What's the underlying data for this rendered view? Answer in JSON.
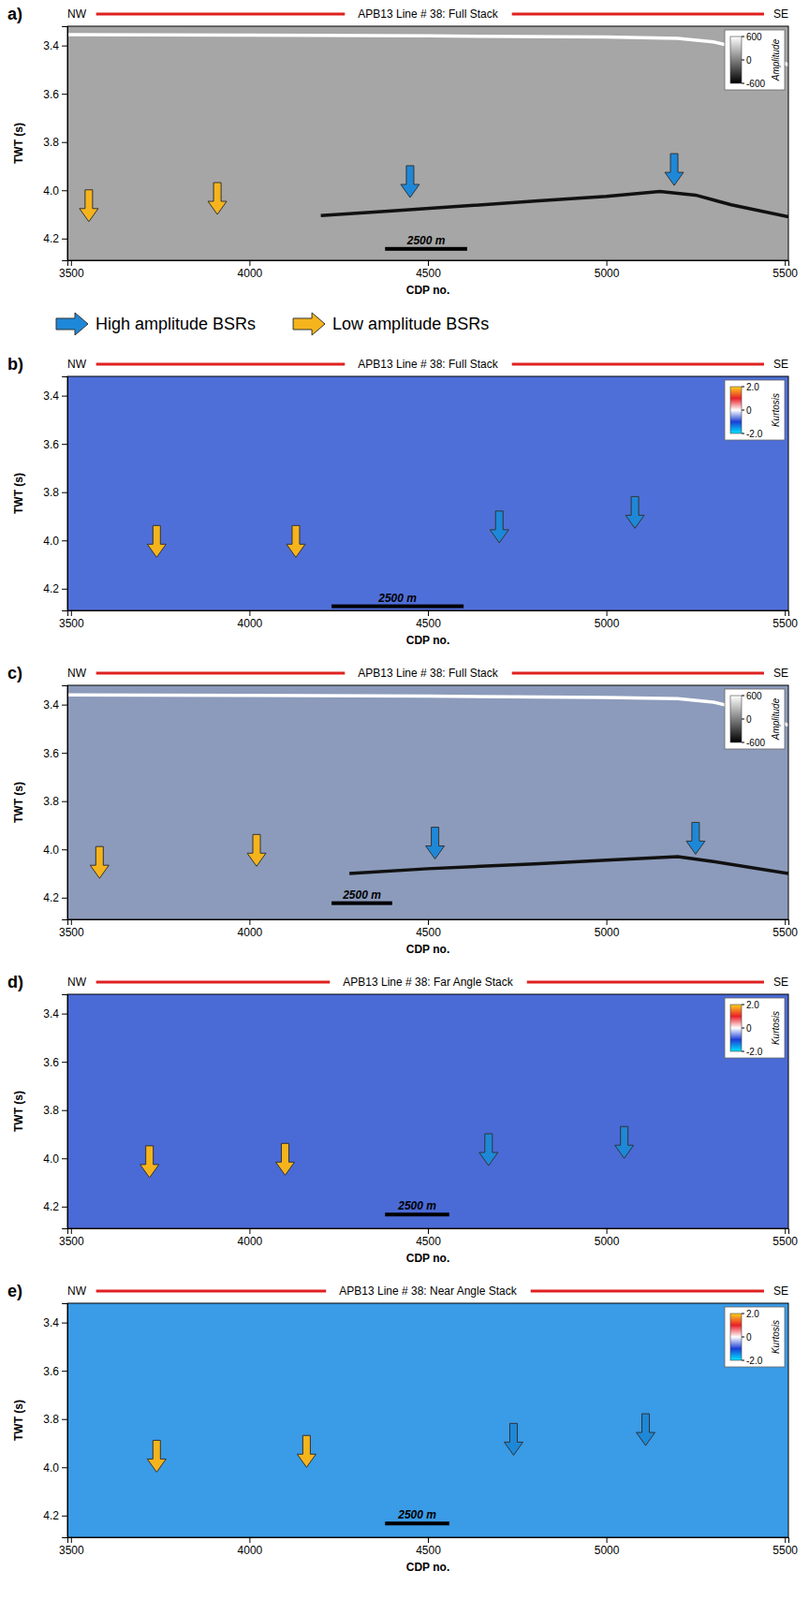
{
  "chart_data": [
    {
      "type": "seismic_section",
      "panel": "a)",
      "title": "APB13 Line # 38: Full Stack",
      "left_label": "NW",
      "right_label": "SE",
      "xlabel": "CDP no.",
      "ylabel": "TWT (s)",
      "color": "#a6a6a6",
      "legend": "bottom",
      "xlim": [
        3490,
        5510
      ],
      "xticks": [
        3500,
        4000,
        4500,
        5000,
        5500
      ],
      "ylim": [
        3.32,
        4.29
      ],
      "yticks": [
        3.4,
        3.6,
        3.8,
        {
          "value": 4.0,
          "label": "4.0"
        },
        4.2
      ],
      "colorbar": {
        "title": "Amplitude",
        "range": [
          -600,
          600
        ],
        "ticks": [
          600,
          0,
          -600
        ],
        "colors": [
          "#000000",
          "#ffffff"
        ]
      },
      "scale_bar": {
        "label": "2500 m",
        "x": [
          4380,
          4610
        ],
        "y": 4.235
      },
      "series": [
        {
          "type": "line",
          "color": "#ffffff",
          "x": [
            3490,
            4000,
            4500,
            5000,
            5200,
            5300,
            5400,
            5510
          ],
          "values": [
            3.355,
            3.357,
            3.36,
            3.365,
            3.37,
            3.385,
            3.42,
            3.48
          ]
        },
        {
          "type": "line",
          "color": "#111111",
          "x": [
            4200,
            4400,
            4600,
            4800,
            5000,
            5150,
            5250,
            5350,
            5510
          ],
          "values": [
            4.105,
            4.085,
            4.065,
            4.045,
            4.025,
            4.005,
            4.02,
            4.06,
            4.11
          ]
        },
        {
          "name": "High amplitude BSRs",
          "marker": "arrow",
          "color": "#1e88d8",
          "x": [
            4450,
            5190
          ],
          "values": [
            4.03,
            3.98
          ]
        },
        {
          "name": "Low amplitude BSRs",
          "marker": "arrow",
          "color": "#f6b41c",
          "x": [
            3550,
            3910
          ],
          "values": [
            4.13,
            4.1
          ]
        }
      ]
    },
    {
      "type": "seismic_section",
      "panel": "b)",
      "title": "APB13 Line # 38: Full Stack",
      "left_label": "NW",
      "right_label": "SE",
      "xlabel": "CDP no.",
      "ylabel": "TWT (s)",
      "color": "#4f6fd8",
      "xlim": [
        3490,
        5510
      ],
      "xticks": [
        3500,
        4000,
        4500,
        5000,
        5500
      ],
      "ylim": [
        3.32,
        4.29
      ],
      "yticks": [
        3.4,
        3.6,
        3.8,
        {
          "value": 4.0,
          "label": "4.0"
        },
        4.2
      ],
      "colorbar": {
        "title": "Kurtosis",
        "range": [
          -2,
          2
        ],
        "ticks": [
          {
            "value": 2,
            "label": "2.0"
          },
          0,
          {
            "value": -2,
            "label": "-2.0"
          }
        ],
        "colors": [
          "#00e5ff",
          "#1a3fd6",
          "#ffffff",
          "#e8202a",
          "#ffd21a"
        ]
      },
      "scale_bar": {
        "label": "2500 m",
        "x": [
          4230,
          4600
        ],
        "y": 4.265
      },
      "series": [
        {
          "marker": "arrow",
          "color": "#1e88d8",
          "x": [
            4700,
            5080
          ],
          "values": [
            4.01,
            3.95
          ]
        },
        {
          "marker": "arrow",
          "color": "#f6b41c",
          "x": [
            3740,
            4130
          ],
          "values": [
            4.07,
            4.07
          ]
        }
      ]
    },
    {
      "type": "seismic_section",
      "panel": "c)",
      "title": "APB13 Line # 38: Full Stack",
      "left_label": "NW",
      "right_label": "SE",
      "xlabel": "CDP no.",
      "ylabel": "TWT (s)",
      "color": "#8c9bbb",
      "xlim": [
        3490,
        5510
      ],
      "xticks": [
        3500,
        4000,
        4500,
        5000,
        5500
      ],
      "ylim": [
        3.32,
        4.29
      ],
      "yticks": [
        3.4,
        3.6,
        3.8,
        {
          "value": 4.0,
          "label": "4.0"
        },
        4.2
      ],
      "colorbar": {
        "title": "Amplitude",
        "range": [
          -600,
          600
        ],
        "ticks": [
          600,
          0,
          -600
        ],
        "colors": [
          "#000000",
          "#ffffff"
        ]
      },
      "scale_bar": {
        "label": "2500 m",
        "x": [
          4230,
          4400
        ],
        "y": 4.215
      },
      "series": [
        {
          "type": "line",
          "color": "#ffffff",
          "x": [
            3490,
            4000,
            4500,
            5000,
            5200,
            5300,
            5400,
            5510
          ],
          "values": [
            3.36,
            3.362,
            3.365,
            3.37,
            3.375,
            3.39,
            3.425,
            3.485
          ]
        },
        {
          "type": "line",
          "color": "#111111",
          "x": [
            4280,
            4500,
            4800,
            5000,
            5200,
            5300,
            5510
          ],
          "values": [
            4.1,
            4.08,
            4.06,
            4.045,
            4.03,
            4.05,
            4.1
          ]
        },
        {
          "marker": "arrow",
          "color": "#1e88d8",
          "x": [
            4520,
            5250
          ],
          "values": [
            4.04,
            4.02
          ]
        },
        {
          "marker": "arrow",
          "color": "#f6b41c",
          "x": [
            3580,
            4020
          ],
          "values": [
            4.12,
            4.07
          ]
        }
      ]
    },
    {
      "type": "seismic_section",
      "panel": "d)",
      "title": "APB13 Line # 38: Far Angle Stack",
      "left_label": "NW",
      "right_label": "SE",
      "xlabel": "CDP no.",
      "ylabel": "TWT (s)",
      "color": "#4a6ad6",
      "xlim": [
        3490,
        5510
      ],
      "xticks": [
        3500,
        4000,
        4500,
        5000,
        5500
      ],
      "ylim": [
        3.32,
        4.29
      ],
      "yticks": [
        3.4,
        3.6,
        3.8,
        {
          "value": 4.0,
          "label": "4.0"
        },
        4.2
      ],
      "colorbar": {
        "title": "Kurtosis",
        "range": [
          -2,
          2
        ],
        "ticks": [
          {
            "value": 2,
            "label": "2.0"
          },
          0,
          {
            "value": -2,
            "label": "-2.0"
          }
        ],
        "colors": [
          "#00e5ff",
          "#1a3fd6",
          "#ffffff",
          "#e8202a",
          "#ffd21a"
        ]
      },
      "scale_bar": {
        "label": "2500 m",
        "x": [
          4380,
          4560
        ],
        "y": 4.225
      },
      "series": [
        {
          "marker": "arrow",
          "color": "#1e88d8",
          "x": [
            4670,
            5050
          ],
          "values": [
            4.03,
            4.0
          ]
        },
        {
          "marker": "arrow",
          "color": "#f6b41c",
          "x": [
            3720,
            4100
          ],
          "values": [
            4.08,
            4.07
          ]
        }
      ]
    },
    {
      "type": "seismic_section",
      "panel": "e)",
      "title": "APB13 Line # 38: Near Angle Stack",
      "left_label": "NW",
      "right_label": "SE",
      "xlabel": "CDP no.",
      "ylabel": "TWT (s)",
      "color": "#3a9be6",
      "xlim": [
        3490,
        5510
      ],
      "xticks": [
        3500,
        4000,
        4500,
        5000,
        5500
      ],
      "ylim": [
        3.32,
        4.29
      ],
      "yticks": [
        3.4,
        3.6,
        3.8,
        {
          "value": 4.0,
          "label": "4.0"
        },
        4.2
      ],
      "colorbar": {
        "title": "Kurtosis",
        "range": [
          -2,
          2
        ],
        "ticks": [
          {
            "value": 2,
            "label": "2.0"
          },
          0,
          {
            "value": -2,
            "label": "-2.0"
          }
        ],
        "colors": [
          "#00e5ff",
          "#1a3fd6",
          "#ffffff",
          "#e8202a",
          "#ffd21a"
        ]
      },
      "scale_bar": {
        "label": "2500 m",
        "x": [
          4380,
          4560
        ],
        "y": 4.225
      },
      "series": [
        {
          "marker": "arrow",
          "color": "#1e88d8",
          "x": [
            4740,
            5110
          ],
          "values": [
            3.95,
            3.91
          ]
        },
        {
          "marker": "arrow",
          "color": "#f6b41c",
          "x": [
            3740,
            4160
          ],
          "values": [
            4.02,
            4.0
          ]
        }
      ]
    }
  ]
}
